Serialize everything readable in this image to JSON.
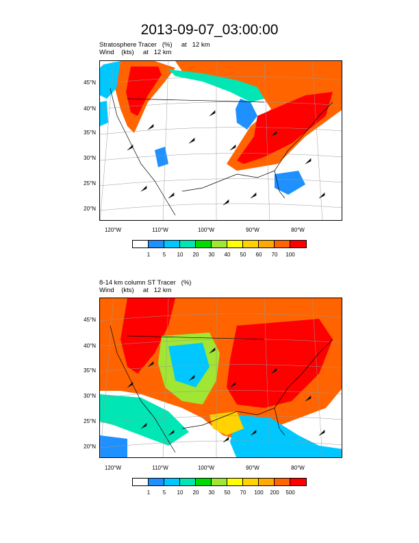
{
  "title": "2013-09-07_03:00:00",
  "panels": [
    {
      "title_line1": "Stratosphere Tracer   (%)     at   12 km",
      "title_line2": "Wind    (kts)     at   12 km",
      "lat_labels": [
        "45°N",
        "40°N",
        "35°N",
        "30°N",
        "25°N",
        "20°N"
      ],
      "lon_labels": [
        "120°W",
        "110°W",
        "100°W",
        "90°W",
        "80°W"
      ],
      "colorbar_labels": [
        "1",
        "5",
        "10",
        "20",
        "30",
        "40",
        "50",
        "60",
        "70",
        "100"
      ],
      "colors": [
        "#ffffff",
        "#1e90ff",
        "#00c8ff",
        "#00e6b4",
        "#00dc00",
        "#a0e632",
        "#ffff00",
        "#ffd200",
        "#ffaa00",
        "#ff6400",
        "#ff0000"
      ]
    },
    {
      "title_line1": "8-14 km column ST Tracer   (%)",
      "title_line2": "Wind    (kts)     at   12 km",
      "lat_labels": [
        "45°N",
        "40°N",
        "35°N",
        "30°N",
        "25°N",
        "20°N"
      ],
      "lon_labels": [
        "120°W",
        "110°W",
        "100°W",
        "90°W",
        "80°W"
      ],
      "colorbar_labels": [
        "1",
        "5",
        "10",
        "20",
        "30",
        "50",
        "70",
        "100",
        "200",
        "500"
      ],
      "colors": [
        "#ffffff",
        "#1e90ff",
        "#00c8ff",
        "#00e6b4",
        "#00dc00",
        "#a0e632",
        "#ffff00",
        "#ffd200",
        "#ffaa00",
        "#ff6400",
        "#ff0000"
      ]
    }
  ]
}
